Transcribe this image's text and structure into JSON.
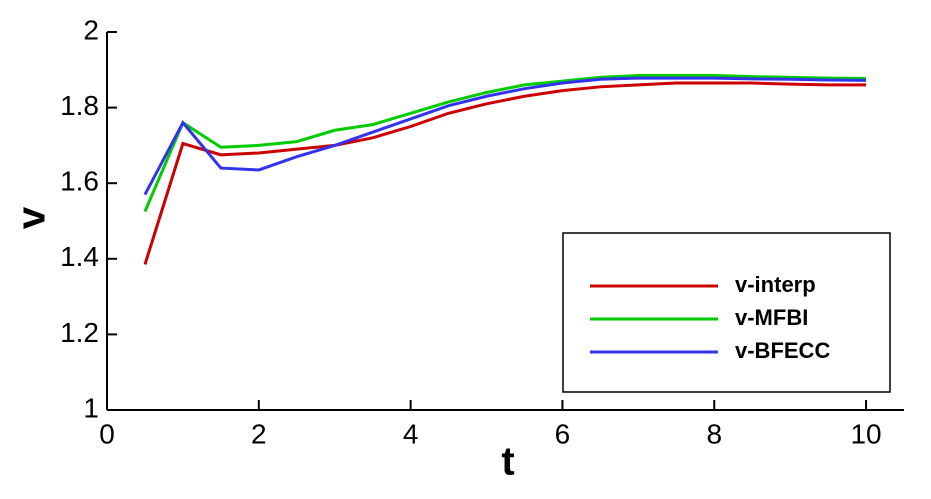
{
  "chart_data": {
    "type": "line",
    "x_label": "t",
    "y_label": "v",
    "x": [
      0.5,
      1,
      1.5,
      2,
      2.5,
      3,
      3.5,
      4,
      4.5,
      5,
      5.5,
      6,
      6.5,
      7,
      7.5,
      8,
      8.5,
      9,
      9.5,
      10
    ],
    "series": [
      {
        "name": "v-interp",
        "color": "#cc0000",
        "values": [
          1.385,
          1.705,
          1.675,
          1.68,
          1.69,
          1.7,
          1.72,
          1.75,
          1.785,
          1.81,
          1.83,
          1.845,
          1.855,
          1.86,
          1.865,
          1.865,
          1.865,
          1.862,
          1.86,
          1.86
        ]
      },
      {
        "name": "v-MFBI",
        "color": "#00cc00",
        "values": [
          1.525,
          1.76,
          1.695,
          1.7,
          1.71,
          1.74,
          1.755,
          1.785,
          1.815,
          1.84,
          1.86,
          1.87,
          1.88,
          1.885,
          1.885,
          1.885,
          1.882,
          1.88,
          1.878,
          1.877
        ]
      },
      {
        "name": "v-BFECC",
        "color": "#3333ee",
        "values": [
          1.57,
          1.76,
          1.64,
          1.635,
          1.67,
          1.7,
          1.735,
          1.77,
          1.805,
          1.83,
          1.85,
          1.865,
          1.875,
          1.878,
          1.878,
          1.878,
          1.876,
          1.875,
          1.873,
          1.872
        ]
      }
    ],
    "xlim": [
      0,
      10.5
    ],
    "ylim": [
      1,
      2
    ],
    "xticks": [
      0,
      2,
      4,
      6,
      8,
      10
    ],
    "yticks": [
      1,
      1.2,
      1.4,
      1.6,
      1.8,
      2
    ],
    "grid": false,
    "legend_position": "lower right"
  }
}
